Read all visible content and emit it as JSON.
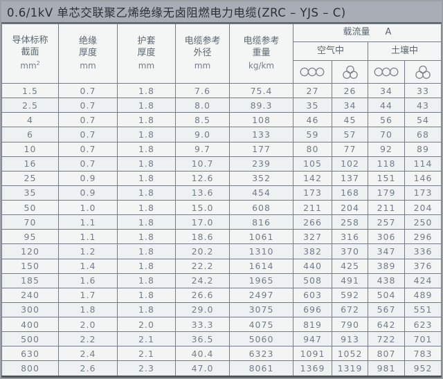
{
  "title": "0.6/1kV 单芯交联聚乙烯绝缘无卤阻燃电力电缆(ZRC – YJS – C)",
  "colors": {
    "title_bar_bg": "#a9aeb6",
    "table_bg": "#f1f4f2",
    "grid_line": "#757986",
    "text": "#727c88"
  },
  "header": {
    "conductor": {
      "l1": "导体标称",
      "l2": "截面",
      "unit_base": "mm",
      "unit_sup": "2"
    },
    "insulation": {
      "l1": "绝缘",
      "l2": "厚度",
      "unit": "mm"
    },
    "sheath": {
      "l1": "护套",
      "l2": "厚度",
      "unit": "mm"
    },
    "outer_diameter": {
      "l1": "电缆参考",
      "l2": "外径",
      "unit": "mm"
    },
    "weight": {
      "l1": "电缆参考",
      "l2": "重量",
      "unit": "kg/km"
    },
    "ampacity": {
      "title": "载流量",
      "unit": "A",
      "air": "空气中",
      "soil": "土壤中",
      "flat_icon": "three-circles-inline",
      "trefoil_icon": "three-circles-trefoil"
    }
  },
  "table": {
    "rows": [
      [
        "1.5",
        "0.7",
        "1.8",
        "7.6",
        "75.4",
        "27",
        "26",
        "34",
        "33"
      ],
      [
        "2.5",
        "0.7",
        "1.8",
        "8.0",
        "89.3",
        "35",
        "34",
        "44",
        "43"
      ],
      [
        "4",
        "0.7",
        "1.8",
        "8.5",
        "108",
        "46",
        "45",
        "56",
        "54"
      ],
      [
        "6",
        "0.7",
        "1.8",
        "9.0",
        "133",
        "59",
        "57",
        "70",
        "68"
      ],
      [
        "10",
        "0.7",
        "1.8",
        "9.7",
        "177",
        "80",
        "77",
        "92",
        "89"
      ],
      [
        "16",
        "0.7",
        "1.8",
        "10.7",
        "239",
        "105",
        "102",
        "118",
        "114"
      ],
      [
        "25",
        "0.9",
        "1.8",
        "12.6",
        "352",
        "142",
        "137",
        "151",
        "146"
      ],
      [
        "35",
        "0.9",
        "1.8",
        "13.6",
        "454",
        "173",
        "168",
        "179",
        "173"
      ],
      [
        "50",
        "1.0",
        "1.8",
        "15.0",
        "608",
        "211",
        "204",
        "211",
        "204"
      ],
      [
        "70",
        "1.1",
        "1.8",
        "17.0",
        "816",
        "266",
        "258",
        "257",
        "250"
      ],
      [
        "95",
        "1.1",
        "1.8",
        "18.6",
        "1061",
        "327",
        "316",
        "306",
        "296"
      ],
      [
        "120",
        "1.2",
        "1.8",
        "20.2",
        "1310",
        "382",
        "370",
        "347",
        "336"
      ],
      [
        "150",
        "1.4",
        "1.8",
        "22.2",
        "1614",
        "440",
        "425",
        "389",
        "376"
      ],
      [
        "185",
        "1.6",
        "1.8",
        "24.2",
        "1965",
        "508",
        "491",
        "438",
        "424"
      ],
      [
        "240",
        "1.7",
        "1.8",
        "26.6",
        "2497",
        "603",
        "592",
        "504",
        "489"
      ],
      [
        "300",
        "1.8",
        "1.8",
        "29.0",
        "3075",
        "696",
        "672",
        "567",
        "551"
      ],
      [
        "400",
        "2.0",
        "2.0",
        "33.3",
        "4075",
        "819",
        "790",
        "642",
        "623"
      ],
      [
        "500",
        "2.2",
        "2.1",
        "36.5",
        "5060",
        "947",
        "913",
        "722",
        "701"
      ],
      [
        "630",
        "2.4",
        "2.1",
        "40.4",
        "6323",
        "1091",
        "1052",
        "807",
        "783"
      ],
      [
        "800",
        "2.6",
        "2.3",
        "47.0",
        "8061",
        "1369",
        "1319",
        "981",
        "952"
      ]
    ]
  }
}
